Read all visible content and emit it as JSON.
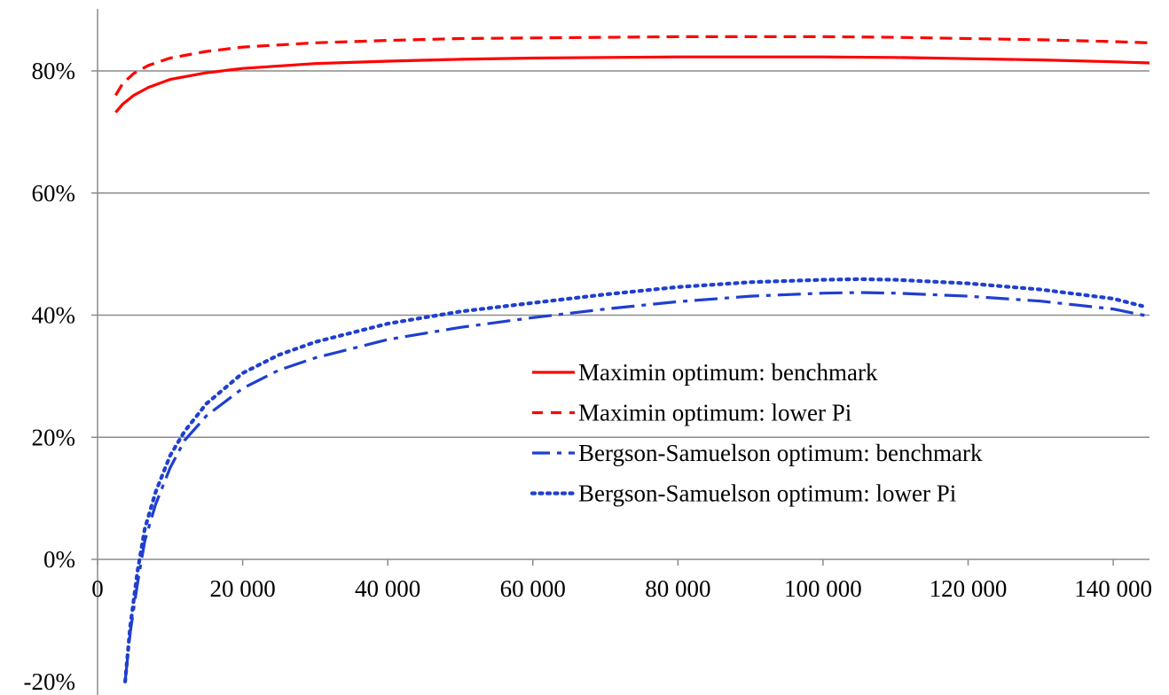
{
  "chart_data": {
    "type": "line",
    "title": "",
    "xlabel": "",
    "ylabel": "",
    "xlim": [
      0,
      145000
    ],
    "ylim": [
      -20,
      85
    ],
    "x_ticks": [
      0,
      20000,
      40000,
      60000,
      80000,
      100000,
      120000,
      140000
    ],
    "x_tick_labels": [
      "0",
      "20 000",
      "40 000",
      "60 000",
      "80 000",
      "100 000",
      "120 000",
      "140 000"
    ],
    "y_ticks": [
      -20,
      0,
      20,
      40,
      60,
      80
    ],
    "y_tick_labels": [
      "-20%",
      "0%",
      "20%",
      "40%",
      "60%",
      "80%"
    ],
    "grid": "horizontal",
    "legend_position": "center-right",
    "series": [
      {
        "name": "Maximin optimum: benchmark",
        "color": "#ff0000",
        "dash": "solid",
        "x": [
          2500,
          3500,
          5000,
          7000,
          10000,
          15000,
          20000,
          30000,
          40000,
          50000,
          60000,
          70000,
          80000,
          90000,
          100000,
          110000,
          120000,
          130000,
          140000,
          145000
        ],
        "y": [
          73.2,
          74.6,
          76.0,
          77.3,
          78.6,
          79.7,
          80.4,
          81.2,
          81.6,
          81.9,
          82.1,
          82.2,
          82.3,
          82.3,
          82.3,
          82.2,
          82.0,
          81.8,
          81.5,
          81.3
        ]
      },
      {
        "name": "Maximin optimum: lower Pi",
        "color": "#ff0000",
        "dash": "dashed",
        "x": [
          2500,
          3500,
          5000,
          7000,
          10000,
          15000,
          20000,
          30000,
          40000,
          50000,
          60000,
          70000,
          80000,
          90000,
          100000,
          110000,
          120000,
          130000,
          140000,
          145000
        ],
        "y": [
          76.0,
          78.0,
          79.6,
          80.9,
          82.1,
          83.2,
          83.9,
          84.6,
          85.0,
          85.3,
          85.4,
          85.5,
          85.6,
          85.6,
          85.6,
          85.5,
          85.3,
          85.1,
          84.8,
          84.6
        ]
      },
      {
        "name": "Bergson-Samuelson optimum: benchmark",
        "color": "#1f3fcf",
        "dash": "dashdot",
        "x": [
          3800,
          4500,
          5500,
          6500,
          8000,
          10000,
          12000,
          15000,
          20000,
          25000,
          30000,
          40000,
          50000,
          60000,
          70000,
          80000,
          90000,
          100000,
          105000,
          110000,
          120000,
          130000,
          140000,
          145000
        ],
        "y": [
          -20,
          -12,
          -4,
          3,
          9,
          15,
          19.5,
          23.5,
          28,
          31,
          33,
          36,
          38,
          39.6,
          41,
          42.2,
          43.1,
          43.6,
          43.7,
          43.6,
          43.1,
          42.3,
          41,
          39.8
        ]
      },
      {
        "name": "Bergson-Samuelson optimum: lower Pi",
        "color": "#1f3fcf",
        "dash": "dotted",
        "x": [
          3800,
          4500,
          5500,
          6500,
          8000,
          10000,
          12000,
          15000,
          20000,
          25000,
          30000,
          40000,
          50000,
          60000,
          70000,
          80000,
          90000,
          100000,
          105000,
          110000,
          120000,
          130000,
          140000,
          144000
        ],
        "y": [
          -20,
          -11,
          -2,
          5,
          11,
          17,
          21,
          25.5,
          30.5,
          33.5,
          35.6,
          38.6,
          40.6,
          42,
          43.4,
          44.6,
          45.4,
          45.8,
          45.9,
          45.8,
          45.2,
          44.2,
          42.7,
          41.5
        ]
      }
    ]
  }
}
